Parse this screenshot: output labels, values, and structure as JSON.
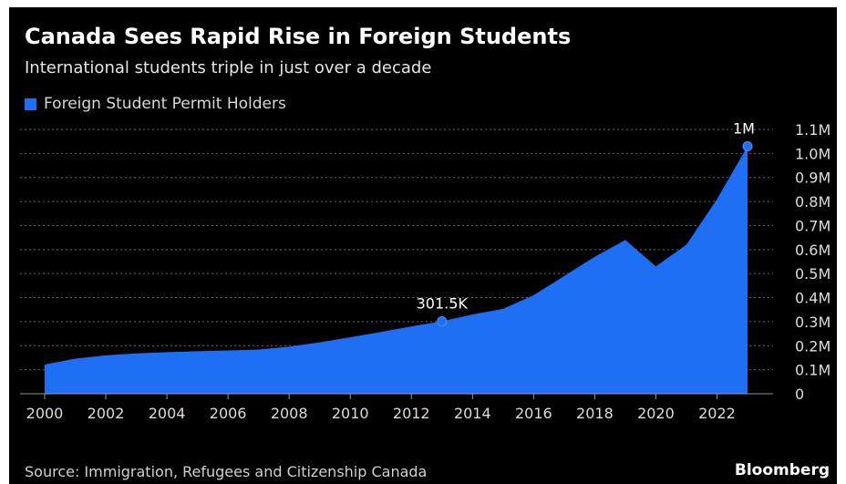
{
  "header": {
    "title": "Canada Sees Rapid Rise in Foreign Students",
    "subtitle": "International students triple in just over a decade"
  },
  "footer": {
    "source": "Source: Immigration, Refugees and Citizenship Canada",
    "brand": "Bloomberg"
  },
  "colors": {
    "background": "#000000",
    "series": "#1f6ff5",
    "gridline": "#6a6a6a",
    "text": "#dcdcdc"
  },
  "chart_data": {
    "type": "area",
    "x": [
      2000,
      2001,
      2002,
      2003,
      2004,
      2005,
      2006,
      2007,
      2008,
      2009,
      2010,
      2011,
      2012,
      2013,
      2014,
      2015,
      2016,
      2017,
      2018,
      2019,
      2020,
      2021,
      2022,
      2023
    ],
    "series": [
      {
        "name": "Foreign Student Permit Holders",
        "values": [
          122000,
          146000,
          160000,
          168000,
          173000,
          177000,
          180000,
          184000,
          196000,
          214000,
          235000,
          257000,
          280000,
          301500,
          330000,
          353000,
          410000,
          490000,
          570000,
          640000,
          530000,
          620000,
          810000,
          1030000
        ]
      }
    ],
    "x_ticks": [
      "2000",
      "2002",
      "2004",
      "2006",
      "2008",
      "2010",
      "2012",
      "2014",
      "2016",
      "2018",
      "2020",
      "2022"
    ],
    "y_ticks": [
      "0",
      "0.1M",
      "0.2M",
      "0.3M",
      "0.4M",
      "0.5M",
      "0.6M",
      "0.7M",
      "0.8M",
      "0.9M",
      "1.0M",
      "1.1M"
    ],
    "ylim": [
      0,
      1100000
    ],
    "xlim": [
      2000,
      2023
    ],
    "annotations": [
      {
        "x": 2013,
        "y": 301500,
        "label": "301.5K"
      },
      {
        "x": 2023,
        "y": 1030000,
        "label": "1M"
      }
    ],
    "legend": "top-left",
    "grid": true,
    "xlabel": "",
    "ylabel": ""
  }
}
